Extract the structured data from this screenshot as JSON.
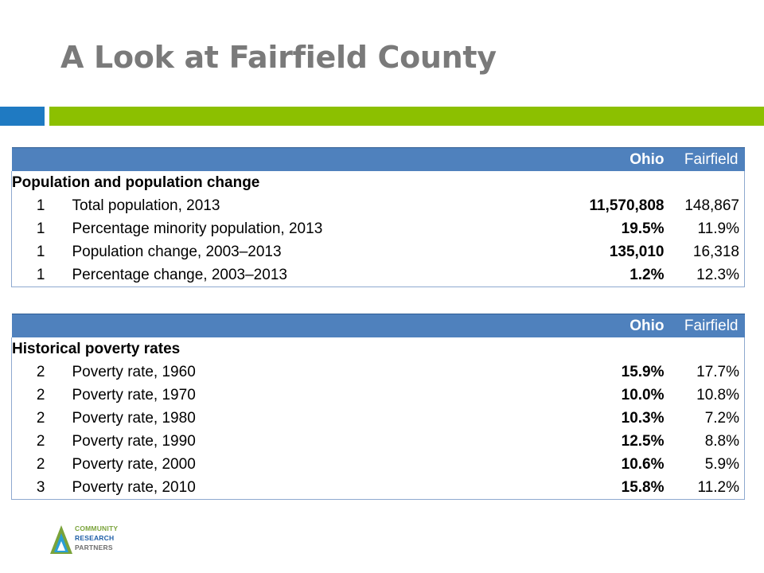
{
  "title": "A Look at Fairfield County",
  "table1": {
    "header": {
      "ohio": "Ohio",
      "fairfield": "Fairfield"
    },
    "section": "Population and population change",
    "rows": [
      {
        "num": "1",
        "label": "Total population, 2013",
        "ohio": "11,570,808",
        "fairfield": "148,867"
      },
      {
        "num": "1",
        "label": "Percentage minority population, 2013",
        "ohio": "19.5%",
        "fairfield": "11.9%"
      },
      {
        "num": "1",
        "label": "Population change, 2003–2013",
        "ohio": "135,010",
        "fairfield": "16,318"
      },
      {
        "num": "1",
        "label": "Percentage change, 2003–2013",
        "ohio": "1.2%",
        "fairfield": "12.3%"
      }
    ]
  },
  "table2": {
    "header": {
      "ohio": "Ohio",
      "fairfield": "Fairfield"
    },
    "section": "Historical poverty rates",
    "rows": [
      {
        "num": "2",
        "label": "Poverty rate, 1960",
        "ohio": "15.9%",
        "fairfield": "17.7%"
      },
      {
        "num": "2",
        "label": "Poverty rate, 1970",
        "ohio": "10.0%",
        "fairfield": "10.8%"
      },
      {
        "num": "2",
        "label": "Poverty rate, 1980",
        "ohio": "10.3%",
        "fairfield": "7.2%"
      },
      {
        "num": "2",
        "label": "Poverty rate, 1990",
        "ohio": "12.5%",
        "fairfield": "8.8%"
      },
      {
        "num": "2",
        "label": "Poverty rate, 2000",
        "ohio": "10.6%",
        "fairfield": "5.9%"
      },
      {
        "num": "3",
        "label": "Poverty rate, 2010",
        "ohio": "15.8%",
        "fairfield": "11.2%"
      }
    ]
  },
  "logo": {
    "line1": "COMMUNITY",
    "line2": "RESEARCH",
    "line3": "PARTNERS"
  },
  "colors": {
    "accent_blue": "#1f7ac2",
    "accent_green": "#8cc000",
    "header_blue": "#4f81bd",
    "title_gray": "#7a7a7a"
  }
}
